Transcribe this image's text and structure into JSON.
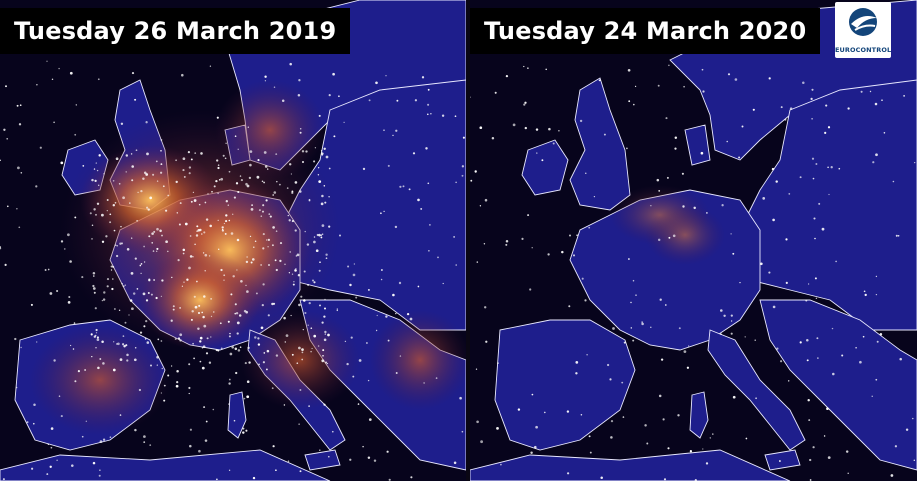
{
  "left_panel": {
    "date_label": "Tuesday 26 March 2019"
  },
  "right_panel": {
    "date_label": "Tuesday 24 March 2020"
  },
  "logo": {
    "text": "EUROCONTROL"
  },
  "colors": {
    "sea": "#07041c",
    "land": "#1e1e8c",
    "borders": "#e8e8ff",
    "traffic_glow_high": "#f4a640",
    "traffic_glow_low": "#7a2a5a",
    "logo_blue": "#13457a"
  },
  "icons": [
    "eurocontrol-logo-icon"
  ]
}
